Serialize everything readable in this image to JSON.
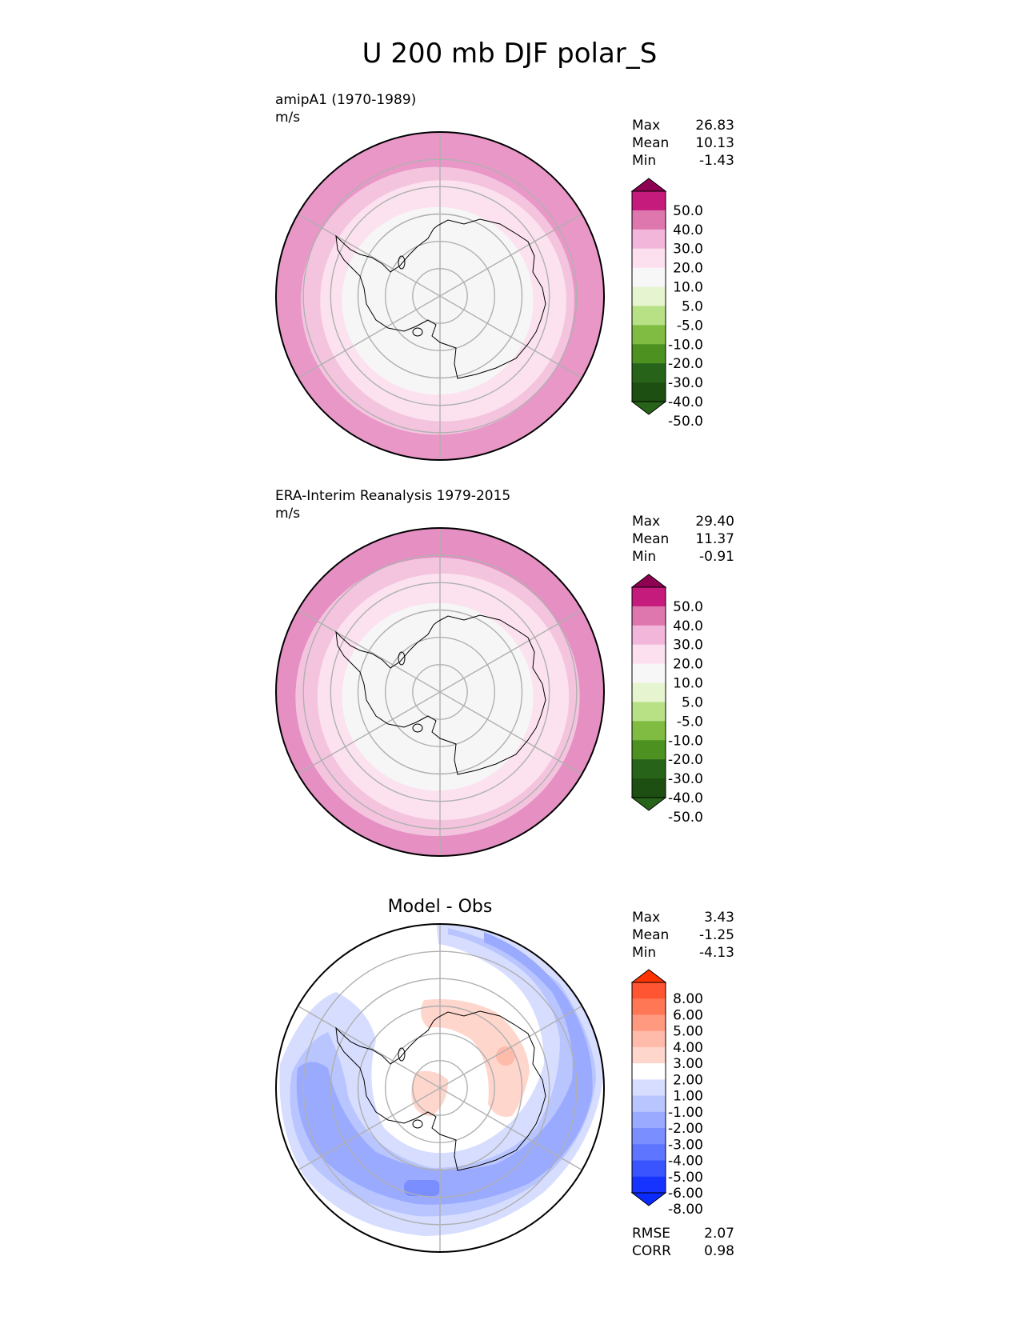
{
  "figure_title": "U 200 mb DJF polar_S",
  "colors": {
    "land_outline": "#000000",
    "grid": "#b0b0b0",
    "frame": "#000000"
  },
  "chart_data": [
    {
      "type": "polar-contour",
      "name": "test",
      "title": "amipA1 (1970-1989)",
      "units": "m/s",
      "center_title": "",
      "stats": [
        {
          "label": "Max",
          "value": "26.83"
        },
        {
          "label": "Mean",
          "value": "10.13"
        },
        {
          "label": "Min",
          "value": "-1.43"
        }
      ],
      "metrics": [],
      "colorbar": {
        "levels": [
          "50.0",
          "40.0",
          "30.0",
          "20.0",
          "10.0",
          "5.0",
          "-5.0",
          "-10.0",
          "-20.0",
          "-30.0",
          "-40.0",
          "-50.0"
        ],
        "colors": [
          "#8e0152",
          "#c51b7d",
          "#de77ae",
          "#f1b6da",
          "#fde0ef",
          "#f7f7f7",
          "#e6f5d0",
          "#b8e186",
          "#7fbc41",
          "#4d9221",
          "#276419",
          "#1d4f12",
          "#184a10"
        ],
        "top_color": "#8e0152",
        "bottom_color": "#276419"
      },
      "field_rings": [
        {
          "lat_edge": -40,
          "color": "#e897c7"
        },
        {
          "lat_edge": -45,
          "color": "#f4c4df"
        },
        {
          "lat_edge": -55,
          "color": "#fbe2ee"
        },
        {
          "lat_edge": -62,
          "color": "#f6f6f6"
        }
      ]
    },
    {
      "type": "polar-contour",
      "name": "reference",
      "title": "ERA-Interim Reanalysis 1979-2015",
      "units": "m/s",
      "center_title": "",
      "stats": [
        {
          "label": "Max",
          "value": "29.40"
        },
        {
          "label": "Mean",
          "value": "11.37"
        },
        {
          "label": "Min",
          "value": "-0.91"
        }
      ],
      "metrics": [],
      "colorbar": {
        "levels": [
          "50.0",
          "40.0",
          "30.0",
          "20.0",
          "10.0",
          "5.0",
          "-5.0",
          "-10.0",
          "-20.0",
          "-30.0",
          "-40.0",
          "-50.0"
        ],
        "colors": [
          "#8e0152",
          "#c51b7d",
          "#de77ae",
          "#f1b6da",
          "#fde0ef",
          "#f7f7f7",
          "#e6f5d0",
          "#b8e186",
          "#7fbc41",
          "#4d9221",
          "#276419",
          "#1d4f12",
          "#184a10"
        ],
        "top_color": "#8e0152",
        "bottom_color": "#276419"
      },
      "field_rings": [
        {
          "lat_edge": -38,
          "color": "#e58fc2"
        },
        {
          "lat_edge": -44,
          "color": "#f4c4df"
        },
        {
          "lat_edge": -55,
          "color": "#fbe2ee"
        },
        {
          "lat_edge": -63,
          "color": "#f6f6f6"
        }
      ]
    },
    {
      "type": "polar-contour",
      "name": "diff",
      "title": "",
      "units": "",
      "center_title": "Model - Obs",
      "stats": [
        {
          "label": "Max",
          "value": "3.43"
        },
        {
          "label": "Mean",
          "value": "-1.25"
        },
        {
          "label": "Min",
          "value": "-4.13"
        }
      ],
      "metrics": [
        {
          "label": "RMSE",
          "value": "2.07"
        },
        {
          "label": "CORR",
          "value": "0.98"
        }
      ],
      "colorbar": {
        "levels": [
          "8.00",
          "6.00",
          "5.00",
          "4.00",
          "3.00",
          "2.00",
          "1.00",
          "-1.00",
          "-2.00",
          "-3.00",
          "-4.00",
          "-5.00",
          "-6.00",
          "-8.00"
        ],
        "colors": [
          "#ff3300",
          "#ff5533",
          "#ff7755",
          "#ff9a80",
          "#ffbbaa",
          "#ffd6cc",
          "#ffffff",
          "#d6ddff",
          "#b9c5ff",
          "#9aaaff",
          "#7a8eff",
          "#5e75ff",
          "#3a55ff",
          "#1633ff",
          "#0a2aff"
        ],
        "top_color": "#ff3300",
        "bottom_color": "#0a2aff"
      },
      "field_rings": []
    }
  ]
}
